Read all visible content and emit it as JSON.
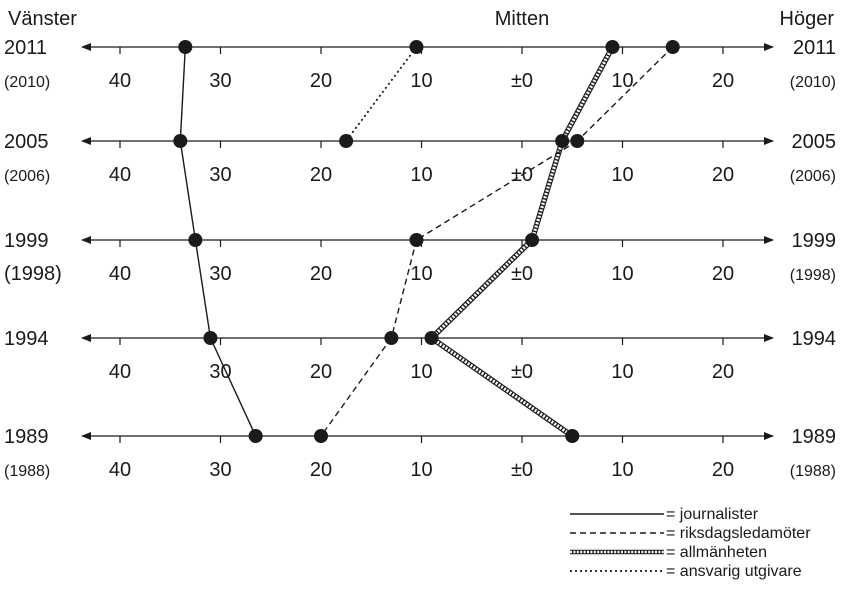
{
  "chart_data": {
    "type": "line",
    "header": {
      "left": "Vänster",
      "center": "Mitten",
      "right": "Höger"
    },
    "rows": [
      {
        "label_left": "2011",
        "label_right": "2011",
        "sublabel_left": "(2010)",
        "sublabel_right": "(2010)",
        "sublabel_size": "small"
      },
      {
        "label_left": "2005",
        "label_right": "2005",
        "sublabel_left": "(2006)",
        "sublabel_right": "(2006)",
        "sublabel_size": "small"
      },
      {
        "label_left": "1999",
        "label_right": "1999",
        "sublabel_left": "(1998)",
        "sublabel_right": "(1998)",
        "sublabel_size": "mixed"
      },
      {
        "label_left": "1994",
        "label_right": "1994",
        "sublabel_left": "",
        "sublabel_right": "",
        "sublabel_size": "none"
      },
      {
        "label_left": "1989",
        "label_right": "1989",
        "sublabel_left": "(1988)",
        "sublabel_right": "(1988)",
        "sublabel_size": "small"
      }
    ],
    "tick_values": [
      -40,
      -30,
      -20,
      -10,
      0,
      10,
      20
    ],
    "tick_labels": [
      "40",
      "30",
      "20",
      "10",
      "±0",
      "10",
      "20"
    ],
    "xlim": [
      -50,
      30
    ],
    "series": [
      {
        "name": "journalister",
        "style": "solid",
        "values": [
          -33.5,
          -34,
          -32.5,
          -31,
          -26.5
        ]
      },
      {
        "name": "riksdagsledamöter",
        "style": "dashed",
        "values": [
          15,
          5.5,
          -10.5,
          -13,
          -20
        ]
      },
      {
        "name": "allmänheten",
        "style": "hatched",
        "values": [
          9,
          4,
          1,
          -9,
          5
        ]
      },
      {
        "name": "ansvarig utgivare",
        "style": "dotted",
        "values": [
          -10.5,
          -17.5,
          null,
          null,
          null
        ]
      }
    ],
    "legend": [
      {
        "style": "solid",
        "text": "= journalister"
      },
      {
        "style": "dashed",
        "text": "= riksdagsledamöter"
      },
      {
        "style": "hatched",
        "text": "= allmänheten"
      },
      {
        "style": "dotted",
        "text": "= ansvarig utgivare"
      }
    ],
    "legend_position": "bottom-right"
  }
}
